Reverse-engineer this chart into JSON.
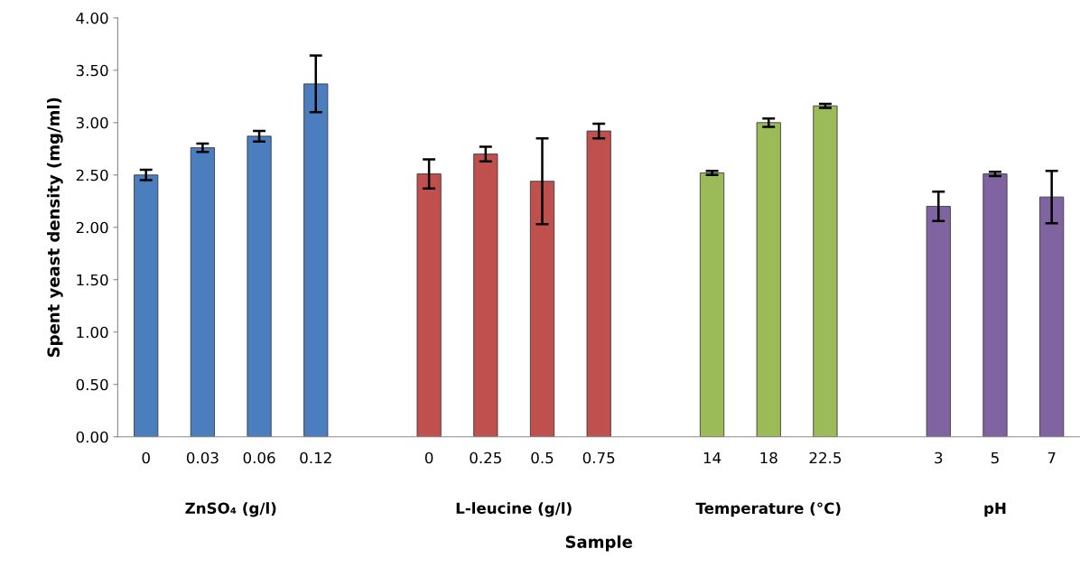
{
  "chart_data": {
    "type": "bar",
    "xlabel": "Sample",
    "ylabel": "Spent yeast density (mg/ml)",
    "categories": [
      "0",
      "0.03",
      "0.06",
      "0.12",
      null,
      "0",
      "0.25",
      "0.5",
      "0.75",
      null,
      "14",
      "18",
      "22.5",
      null,
      "3",
      "5",
      "7"
    ],
    "values": [
      2.5,
      2.76,
      2.87,
      3.37,
      null,
      2.51,
      2.7,
      2.44,
      2.92,
      null,
      2.52,
      3.0,
      3.16,
      null,
      2.2,
      2.51,
      2.29
    ],
    "errors": [
      0.05,
      0.04,
      0.05,
      0.27,
      null,
      0.14,
      0.07,
      0.41,
      0.07,
      null,
      0.02,
      0.04,
      0.02,
      null,
      0.14,
      0.02,
      0.25
    ],
    "colors": [
      "#4a7ebf",
      "#4a7ebf",
      "#4a7ebf",
      "#4a7ebf",
      null,
      "#c0504d",
      "#c0504d",
      "#c0504d",
      "#c0504d",
      null,
      "#9bbb59",
      "#9bbb59",
      "#9bbb59",
      null,
      "#8064a2",
      "#8064a2",
      "#8064a2"
    ],
    "ylim": [
      0,
      4
    ],
    "yticks": [
      {
        "value": 0,
        "label": "0.00"
      },
      {
        "value": 0.5,
        "label": "0.50"
      },
      {
        "value": 1,
        "label": "1.00"
      },
      {
        "value": 1.5,
        "label": "1.50"
      },
      {
        "value": 2,
        "label": "2.00"
      },
      {
        "value": 2.5,
        "label": "2.50"
      },
      {
        "value": 3,
        "label": "3.00"
      },
      {
        "value": 3.5,
        "label": "3.50"
      },
      {
        "value": 4,
        "label": "4.00"
      }
    ],
    "annotations": [
      "ZnSO₄ (g/l)",
      "L-leucine (g/l)",
      "Temperature (°C)",
      "pH"
    ],
    "grid": false,
    "legend": false
  }
}
